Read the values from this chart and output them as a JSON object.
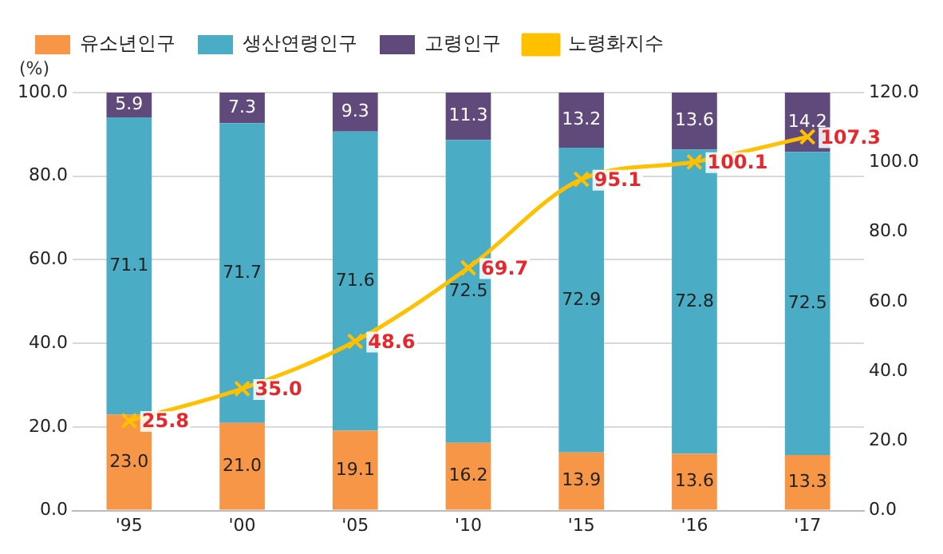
{
  "chart_data": {
    "type": "bar",
    "stacked": true,
    "ylabel": "(%)",
    "categories": [
      "'95",
      "'00",
      "'05",
      "'10",
      "'15",
      "'16",
      "'17"
    ],
    "series": [
      {
        "name": "유소년인구",
        "color": "#f79646",
        "values": [
          23.0,
          21.0,
          19.1,
          16.2,
          13.9,
          13.6,
          13.3
        ],
        "value_labels": [
          "23.0",
          "21.0",
          "19.1",
          "16.2",
          "13.9",
          "13.6",
          "13.3"
        ]
      },
      {
        "name": "생산연령인구",
        "color": "#4bacc6",
        "values": [
          71.1,
          71.7,
          71.6,
          72.5,
          72.9,
          72.8,
          72.5
        ],
        "value_labels": [
          "71.1",
          "71.7",
          "71.6",
          "72.5",
          "72.9",
          "72.8",
          "72.5"
        ]
      },
      {
        "name": "고령인구",
        "color": "#604a7b",
        "values": [
          5.9,
          7.3,
          9.3,
          11.3,
          13.2,
          13.6,
          14.2
        ],
        "value_labels": [
          "5.9",
          "7.3",
          "9.3",
          "11.3",
          "13.2",
          "13.6",
          "14.2"
        ]
      },
      {
        "name": "노령화지수",
        "type": "line",
        "axis": "y2",
        "color": "#ffc000",
        "marker": "cross",
        "values": [
          25.8,
          35.0,
          48.6,
          69.7,
          95.1,
          100.1,
          107.3
        ],
        "value_labels": [
          "25.8",
          "35.0",
          "48.6",
          "69.7",
          "95.1",
          "100.1",
          "107.3"
        ]
      }
    ],
    "ylim": [
      0,
      100
    ],
    "yticks": [
      {
        "value": 0,
        "label": "0.0"
      },
      {
        "value": 20,
        "label": "20.0"
      },
      {
        "value": 40,
        "label": "40.0"
      },
      {
        "value": 60,
        "label": "60.0"
      },
      {
        "value": 80,
        "label": "80.0"
      },
      {
        "value": 100,
        "label": "100.0"
      }
    ],
    "y2lim": [
      0,
      120
    ],
    "y2ticks": [
      {
        "value": 0,
        "label": "0.0"
      },
      {
        "value": 20,
        "label": "20.0"
      },
      {
        "value": 40,
        "label": "40.0"
      },
      {
        "value": 60,
        "label": "60.0"
      },
      {
        "value": 80,
        "label": "80.0"
      },
      {
        "value": 100,
        "label": "100.0"
      },
      {
        "value": 120,
        "label": "120.0"
      }
    ],
    "grid": "y",
    "legend": "top"
  }
}
